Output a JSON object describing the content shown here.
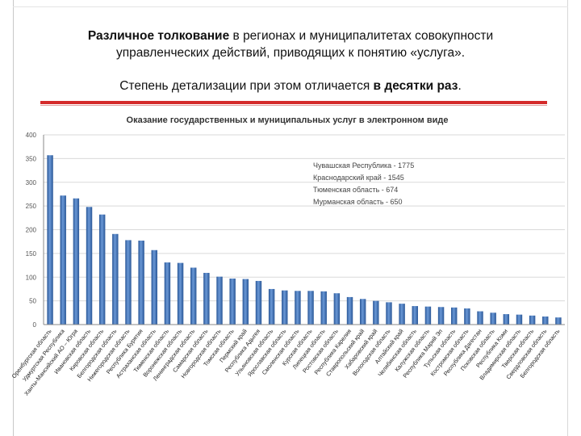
{
  "heading": {
    "line1_bold": "Различное толкование",
    "line1_rest": " в регионах и муниципалитетах совокупности",
    "line2": "управленческих действий, приводящих к понятию «услуга».",
    "line3_start": "Степень детализации при этом отличается ",
    "line3_bold": "в десятки раз",
    "line3_end": "."
  },
  "chart_data": {
    "type": "bar",
    "title": "Оказание государственных и муниципальных услуг в электронном виде",
    "xlabel": "",
    "ylabel": "",
    "ylim": [
      0,
      400
    ],
    "yticks": [
      0,
      50,
      100,
      150,
      200,
      250,
      300,
      350,
      400
    ],
    "grid": true,
    "legend": "none",
    "bar_color": "#3d6fb5",
    "categories": [
      "Оренбургская область",
      "Удмуртская Республика",
      "Ханты-Мансийский АО – Югра",
      "Ивановская область",
      "Кировская область",
      "Белгородская область",
      "Нижегородская область",
      "Республика Бурятия",
      "Астраханская область",
      "Тюменская область",
      "Воронежская область",
      "Ленинградская область",
      "Самарская область",
      "Новгородская область",
      "Томская область",
      "Пермский край",
      "Республика Адыгея",
      "Ульяновская область",
      "Ярославская область",
      "Смоленская область",
      "Курская область",
      "Липецкая область",
      "Ростовская область",
      "Республика Карелия",
      "Ставропольский край",
      "Хабаровский край",
      "Вологодская область",
      "Алтайский край",
      "Челябинская область",
      "Калужская область",
      "Республика Марий Эл",
      "Тульская область",
      "Костромская область",
      "Республика Дагестан",
      "Псковская область",
      "Республика Коми",
      "Владимирская область",
      "Тверская область",
      "Свердловская область",
      "Белгородская область"
    ],
    "values": [
      357,
      272,
      266,
      248,
      232,
      191,
      178,
      177,
      157,
      131,
      130,
      120,
      109,
      101,
      97,
      96,
      92,
      75,
      72,
      71,
      71,
      70,
      66,
      58,
      54,
      50,
      47,
      44,
      39,
      38,
      37,
      36,
      34,
      28,
      25,
      22,
      21,
      19,
      17,
      15
    ],
    "annotations": [
      "Чувашская Республика - 1775",
      "Краснодарский край - 1545",
      "Тюменская область - 674",
      "Мурманская область - 650"
    ]
  }
}
